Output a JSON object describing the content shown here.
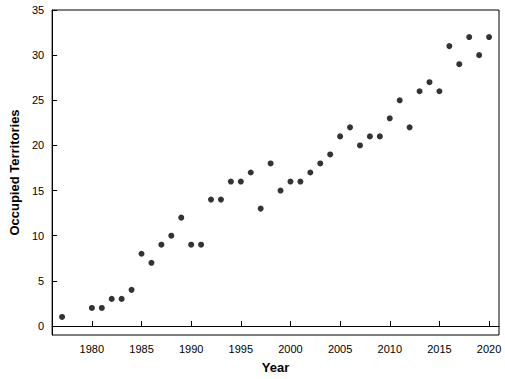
{
  "chart_data": {
    "type": "scatter",
    "x_label": "Year",
    "y_label": "Occupied Territories",
    "x": [
      1977,
      1980,
      1981,
      1982,
      1983,
      1984,
      1985,
      1986,
      1987,
      1988,
      1989,
      1990,
      1991,
      1992,
      1993,
      1994,
      1995,
      1996,
      1997,
      1998,
      1999,
      2000,
      2001,
      2002,
      2003,
      2004,
      2005,
      2006,
      2007,
      2008,
      2009,
      2010,
      2011,
      2012,
      2013,
      2014,
      2015,
      2016,
      2017,
      2018,
      2019,
      2020
    ],
    "values": [
      1,
      2,
      2,
      3,
      3,
      4,
      8,
      7,
      9,
      10,
      12,
      9,
      9,
      14,
      14,
      16,
      16,
      17,
      13,
      18,
      15,
      16,
      16,
      17,
      18,
      19,
      21,
      22,
      20,
      21,
      21,
      23,
      25,
      22,
      26,
      27,
      26,
      31,
      29,
      32,
      30,
      32
    ],
    "color": "#000000",
    "marker": "circle",
    "xlim": [
      1976,
      2021
    ],
    "xticks": [
      1980,
      1985,
      1990,
      1995,
      2000,
      2005,
      2010,
      2015,
      2020
    ],
    "ylim": [
      -1,
      35
    ],
    "yticks": [
      0,
      5,
      10,
      15,
      20,
      25,
      30,
      35
    ],
    "grid": false
  }
}
